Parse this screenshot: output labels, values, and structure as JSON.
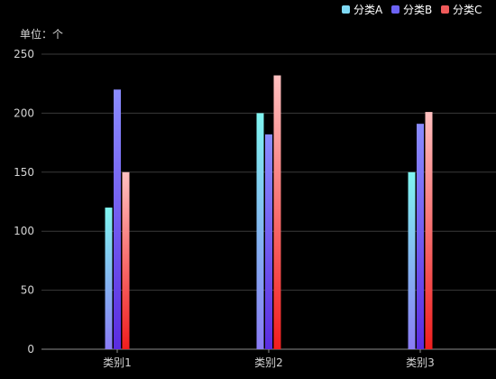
{
  "chart_data": {
    "type": "bar",
    "unit_label": "单位：个",
    "categories": [
      "类别1",
      "类别2",
      "类别3"
    ],
    "series": [
      {
        "name": "分类A",
        "values": [
          120,
          200,
          150
        ],
        "gradient": [
          "#7ff5f0",
          "#8a7cf5"
        ],
        "legend_color": "#7fd9f5"
      },
      {
        "name": "分类B",
        "values": [
          220,
          182,
          191
        ],
        "gradient": [
          "#8a8cff",
          "#5a2ce0"
        ],
        "legend_color": "#6c63f5"
      },
      {
        "name": "分类C",
        "values": [
          150,
          232,
          201
        ],
        "gradient": [
          "#ffc0c0",
          "#f01e1e"
        ],
        "legend_color": "#f05a5a"
      }
    ],
    "ylim": [
      0,
      250
    ],
    "yticks": [
      0,
      50,
      100,
      150,
      200,
      250
    ],
    "grid": true,
    "legend_position": "top-right",
    "colors": {
      "background": "#000000",
      "grid": "#3a3a3a",
      "axis": "#8c8c8c",
      "text": "#d4d4d4"
    }
  }
}
